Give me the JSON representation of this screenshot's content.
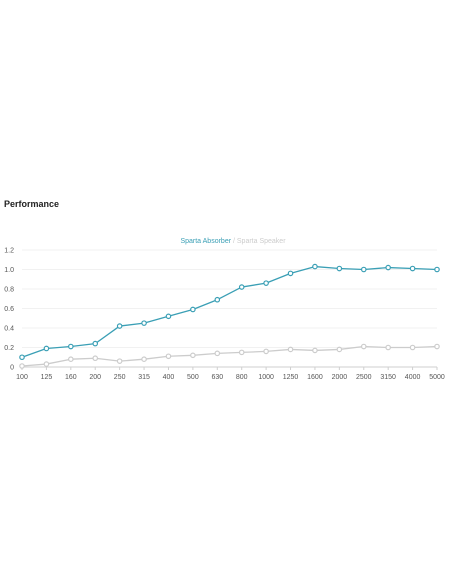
{
  "page": {
    "section_title": "Performance"
  },
  "chart_data": {
    "type": "line",
    "title": "",
    "xlabel": "",
    "ylabel": "",
    "categories": [
      "100",
      "125",
      "160",
      "200",
      "250",
      "315",
      "400",
      "500",
      "630",
      "800",
      "1000",
      "1250",
      "1600",
      "2000",
      "2500",
      "3150",
      "4000",
      "5000"
    ],
    "ylim": [
      0,
      1.2
    ],
    "y_ticks": [
      "0",
      "0.2",
      "0.4",
      "0.6",
      "0.8",
      "1.0",
      "1.2"
    ],
    "grid": true,
    "legend_position": "top-center",
    "legend_separator": " / ",
    "series": [
      {
        "name": "Sparta Absorber",
        "color": "#3a9fb5",
        "values": [
          0.1,
          0.19,
          0.21,
          0.24,
          0.42,
          0.45,
          0.52,
          0.59,
          0.69,
          0.82,
          0.86,
          0.96,
          1.03,
          1.01,
          1.0,
          1.02,
          1.01,
          1.0
        ]
      },
      {
        "name": "Sparta Speaker",
        "color": "#cccccc",
        "values": [
          0.01,
          0.03,
          0.08,
          0.09,
          0.06,
          0.08,
          0.11,
          0.12,
          0.14,
          0.15,
          0.16,
          0.18,
          0.17,
          0.18,
          0.21,
          0.2,
          0.2,
          0.21
        ]
      }
    ]
  }
}
